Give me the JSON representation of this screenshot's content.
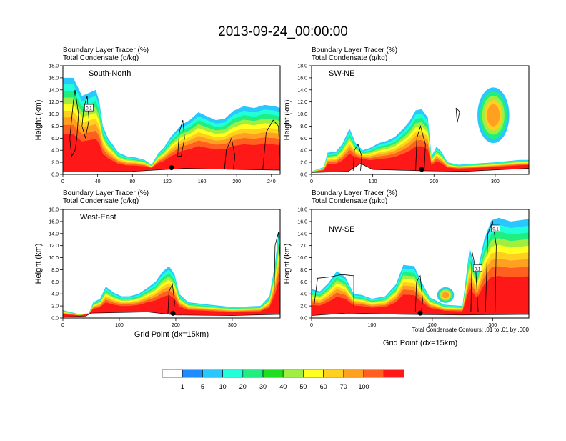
{
  "title": "2013-09-24_00:00:00",
  "colors": {
    "levels": [
      "#ffffff",
      "#1e8cff",
      "#28c8ff",
      "#20ffd8",
      "#20ee80",
      "#20dd20",
      "#a0ee40",
      "#ffff20",
      "#ffd020",
      "#ffa020",
      "#ff6020",
      "#ff1818"
    ],
    "contour": "#000000",
    "ground": "#ffffff"
  },
  "colorbar": {
    "labels": [
      "1",
      "5",
      "10",
      "20",
      "30",
      "40",
      "50",
      "60",
      "70",
      "100"
    ]
  },
  "chart_data": [
    {
      "type": "heatmap",
      "name": "South-North",
      "panel_label": "South-North",
      "title_line1": "Boundary Layer Tracer   (%)",
      "title_line2": "Total Condensate   (g/kg)",
      "ylabel": "Height (km)",
      "xlabel": "",
      "ylim": [
        0,
        18
      ],
      "yticks": [
        "0.0",
        "2.0",
        "4.0",
        "6.0",
        "8.0",
        "10.0",
        "12.0",
        "14.0",
        "16.0",
        "18.0"
      ],
      "xlim": [
        0,
        250
      ],
      "xticks": [
        0,
        40,
        80,
        120,
        160,
        200,
        240
      ],
      "marker_x": 125,
      "terrain": [
        [
          0,
          0.4
        ],
        [
          80,
          0.5
        ],
        [
          140,
          1.0
        ],
        [
          200,
          0.8
        ],
        [
          250,
          0.7
        ]
      ],
      "top": [
        [
          0,
          16
        ],
        [
          12,
          16
        ],
        [
          22,
          13
        ],
        [
          30,
          13.5
        ],
        [
          38,
          14
        ],
        [
          42,
          12
        ],
        [
          46,
          8
        ],
        [
          52,
          6
        ],
        [
          64,
          3.6
        ],
        [
          74,
          3.0
        ],
        [
          84,
          2.8
        ],
        [
          94,
          2.4
        ],
        [
          102,
          1.6
        ],
        [
          110,
          3.6
        ],
        [
          116,
          4.4
        ],
        [
          124,
          6.2
        ],
        [
          136,
          8.2
        ],
        [
          146,
          9.0
        ],
        [
          156,
          10.3
        ],
        [
          166,
          9.6
        ],
        [
          176,
          9.0
        ],
        [
          186,
          9.2
        ],
        [
          196,
          10.5
        ],
        [
          208,
          11.3
        ],
        [
          220,
          11.0
        ],
        [
          232,
          11.5
        ],
        [
          244,
          11.3
        ],
        [
          250,
          11.0
        ]
      ],
      "contours": [
        [
          [
            8,
            6
          ],
          [
            12,
            12
          ],
          [
            14,
            14
          ],
          [
            18,
            10
          ],
          [
            16,
            6
          ],
          [
            14,
            4
          ],
          [
            10,
            3
          ],
          [
            8,
            6
          ]
        ],
        [
          [
            22,
            8
          ],
          [
            24,
            11
          ],
          [
            28,
            13
          ],
          [
            30,
            9
          ],
          [
            26,
            6
          ],
          [
            22,
            8
          ]
        ],
        [
          [
            132,
            3
          ],
          [
            134,
            7
          ],
          [
            138,
            9
          ],
          [
            140,
            6
          ],
          [
            136,
            3
          ],
          [
            132,
            3
          ]
        ],
        [
          [
            186,
            0.8
          ],
          [
            188,
            4
          ],
          [
            194,
            6
          ],
          [
            198,
            3
          ],
          [
            196,
            0.8
          ]
        ],
        [
          [
            230,
            0.8
          ],
          [
            234,
            7
          ],
          [
            242,
            9
          ],
          [
            248,
            8
          ],
          [
            250,
            2
          ]
        ]
      ],
      "contour_labels": [
        {
          "text": "0.1",
          "x": 30,
          "y": 11
        }
      ]
    },
    {
      "type": "heatmap",
      "name": "SW-NE",
      "panel_label": "SW-NE",
      "title_line1": "Boundary Layer Tracer   (%)",
      "title_line2": "Total Condensate   (g/kg)",
      "ylabel": "Height (km)",
      "xlabel": "",
      "ylim": [
        0,
        18
      ],
      "yticks": [
        "0.0",
        "2.0",
        "4.0",
        "6.0",
        "8.0",
        "10.0",
        "12.0",
        "14.0",
        "16.0",
        "18.0"
      ],
      "xlim": [
        0,
        355
      ],
      "xticks": [
        0,
        100,
        200,
        300
      ],
      "marker_x": 180,
      "terrain": [
        [
          0,
          0.3
        ],
        [
          60,
          0.5
        ],
        [
          80,
          1.8
        ],
        [
          100,
          0.8
        ],
        [
          180,
          0.6
        ],
        [
          250,
          0.5
        ],
        [
          355,
          1.0
        ]
      ],
      "top": [
        [
          0,
          0.5
        ],
        [
          20,
          1.2
        ],
        [
          26,
          3.6
        ],
        [
          40,
          3.8
        ],
        [
          50,
          5.0
        ],
        [
          62,
          7.6
        ],
        [
          72,
          5.2
        ],
        [
          84,
          4.0
        ],
        [
          96,
          4.4
        ],
        [
          110,
          5.2
        ],
        [
          124,
          5.6
        ],
        [
          136,
          6.2
        ],
        [
          150,
          7.6
        ],
        [
          160,
          8.8
        ],
        [
          170,
          10.6
        ],
        [
          180,
          10.8
        ],
        [
          190,
          9.4
        ],
        [
          196,
          3.0
        ],
        [
          204,
          4.6
        ],
        [
          212,
          3.8
        ],
        [
          222,
          2.0
        ],
        [
          240,
          1.6
        ],
        [
          270,
          1.8
        ],
        [
          300,
          2.0
        ],
        [
          340,
          2.4
        ],
        [
          355,
          2.4
        ]
      ],
      "blobs": [
        {
          "cx": 297,
          "cy": 9.8,
          "rx": 26,
          "ry": 4.6
        }
      ],
      "contours": [
        [
          [
            68,
            0.6
          ],
          [
            70,
            4
          ],
          [
            76,
            5
          ],
          [
            82,
            3
          ],
          [
            80,
            0.6
          ]
        ],
        [
          [
            170,
            0.6
          ],
          [
            172,
            6
          ],
          [
            178,
            8
          ],
          [
            186,
            5
          ],
          [
            184,
            0.6
          ]
        ],
        [
          [
            236,
            11
          ],
          [
            238,
            8.6
          ],
          [
            242,
            10.4
          ],
          [
            236,
            11
          ]
        ]
      ],
      "contour_labels": []
    },
    {
      "type": "heatmap",
      "name": "West-East",
      "panel_label": "West-East",
      "title_line1": "Boundary Layer Tracer   (%)",
      "title_line2": "Total Condensate   (g/kg)",
      "ylabel": "Height (km)",
      "xlabel": "Grid Point (dx=15km)",
      "ylim": [
        0,
        18
      ],
      "yticks": [
        "0.0",
        "2.0",
        "4.0",
        "6.0",
        "8.0",
        "10.0",
        "12.0",
        "14.0",
        "16.0",
        "18.0"
      ],
      "xlim": [
        0,
        385
      ],
      "xticks": [
        0,
        100,
        200,
        300
      ],
      "marker_x": 195,
      "terrain": [
        [
          0,
          0.2
        ],
        [
          40,
          0.3
        ],
        [
          50,
          0.8
        ],
        [
          150,
          1.0
        ],
        [
          200,
          0.5
        ],
        [
          300,
          0.4
        ],
        [
          385,
          0.6
        ]
      ],
      "top": [
        [
          0,
          1.3
        ],
        [
          30,
          0.6
        ],
        [
          46,
          0.8
        ],
        [
          54,
          2.6
        ],
        [
          66,
          3.2
        ],
        [
          76,
          5.2
        ],
        [
          90,
          4.2
        ],
        [
          104,
          3.6
        ],
        [
          118,
          3.6
        ],
        [
          134,
          4.0
        ],
        [
          150,
          5.0
        ],
        [
          164,
          6.0
        ],
        [
          176,
          7.6
        ],
        [
          188,
          8.6
        ],
        [
          198,
          7.2
        ],
        [
          206,
          4.0
        ],
        [
          222,
          2.6
        ],
        [
          260,
          2.2
        ],
        [
          300,
          1.8
        ],
        [
          350,
          2.0
        ],
        [
          366,
          3.6
        ],
        [
          376,
          9.0
        ],
        [
          382,
          14.2
        ],
        [
          385,
          14.2
        ]
      ],
      "contours": [
        [
          [
            186,
            0.6
          ],
          [
            188,
            4.4
          ],
          [
            194,
            5.6
          ],
          [
            198,
            2.6
          ],
          [
            196,
            0.6
          ]
        ],
        [
          [
            374,
            2
          ],
          [
            376,
            12
          ],
          [
            382,
            14.2
          ],
          [
            385,
            10
          ]
        ]
      ],
      "contour_labels": []
    },
    {
      "type": "heatmap",
      "name": "NW-SE",
      "panel_label": "NW-SE",
      "title_line1": "Boundary Layer Tracer   (%)",
      "title_line2": "Total Condensate   (g/kg)",
      "ylabel": "Height (km)",
      "xlabel": "Grid Point (dx=15km)",
      "ylim": [
        0,
        18
      ],
      "yticks": [
        "0.0",
        "2.0",
        "4.0",
        "6.0",
        "8.0",
        "10.0",
        "12.0",
        "14.0",
        "16.0",
        "18.0"
      ],
      "xlim": [
        0,
        360
      ],
      "xticks": [
        0,
        100,
        200,
        300
      ],
      "marker_x": 180,
      "terrain": [
        [
          0,
          0.4
        ],
        [
          60,
          0.8
        ],
        [
          150,
          0.6
        ],
        [
          250,
          0.5
        ],
        [
          360,
          0.6
        ]
      ],
      "top": [
        [
          0,
          4.8
        ],
        [
          14,
          4.4
        ],
        [
          28,
          5.8
        ],
        [
          42,
          7.8
        ],
        [
          56,
          6.8
        ],
        [
          70,
          4.0
        ],
        [
          84,
          3.8
        ],
        [
          100,
          3.2
        ],
        [
          122,
          3.6
        ],
        [
          140,
          5.6
        ],
        [
          152,
          8.8
        ],
        [
          170,
          8.6
        ],
        [
          182,
          6.0
        ],
        [
          196,
          3.4
        ],
        [
          220,
          2.2
        ],
        [
          250,
          2.0
        ],
        [
          262,
          11.6
        ],
        [
          274,
          7.4
        ],
        [
          286,
          13.0
        ],
        [
          298,
          16.2
        ],
        [
          310,
          16.6
        ],
        [
          330,
          16.0
        ],
        [
          360,
          16.4
        ]
      ],
      "blobs": [
        {
          "cx": 222,
          "cy": 3.8,
          "rx": 14,
          "ry": 1.3
        }
      ],
      "contours": [
        [
          [
            4,
            2
          ],
          [
            10,
            6.6
          ],
          [
            30,
            6.8
          ],
          [
            50,
            7.2
          ],
          [
            70,
            7.0
          ],
          [
            70,
            2
          ]
        ],
        [
          [
            264,
            1
          ],
          [
            266,
            11
          ],
          [
            272,
            8
          ],
          [
            276,
            1
          ]
        ],
        [
          [
            288,
            1
          ],
          [
            292,
            14
          ],
          [
            300,
            16
          ],
          [
            306,
            12
          ],
          [
            304,
            1
          ]
        ],
        [
          [
            172,
            1
          ],
          [
            174,
            6
          ],
          [
            180,
            7
          ],
          [
            184,
            3
          ],
          [
            182,
            1
          ]
        ]
      ],
      "contour_labels": [
        {
          "text": "0.1",
          "x": 305,
          "y": 14.8
        },
        {
          "text": "0.1",
          "x": 275,
          "y": 8.2
        }
      ]
    }
  ],
  "contour_note": "Total Condensate Contours: .01 to .01 by .000"
}
